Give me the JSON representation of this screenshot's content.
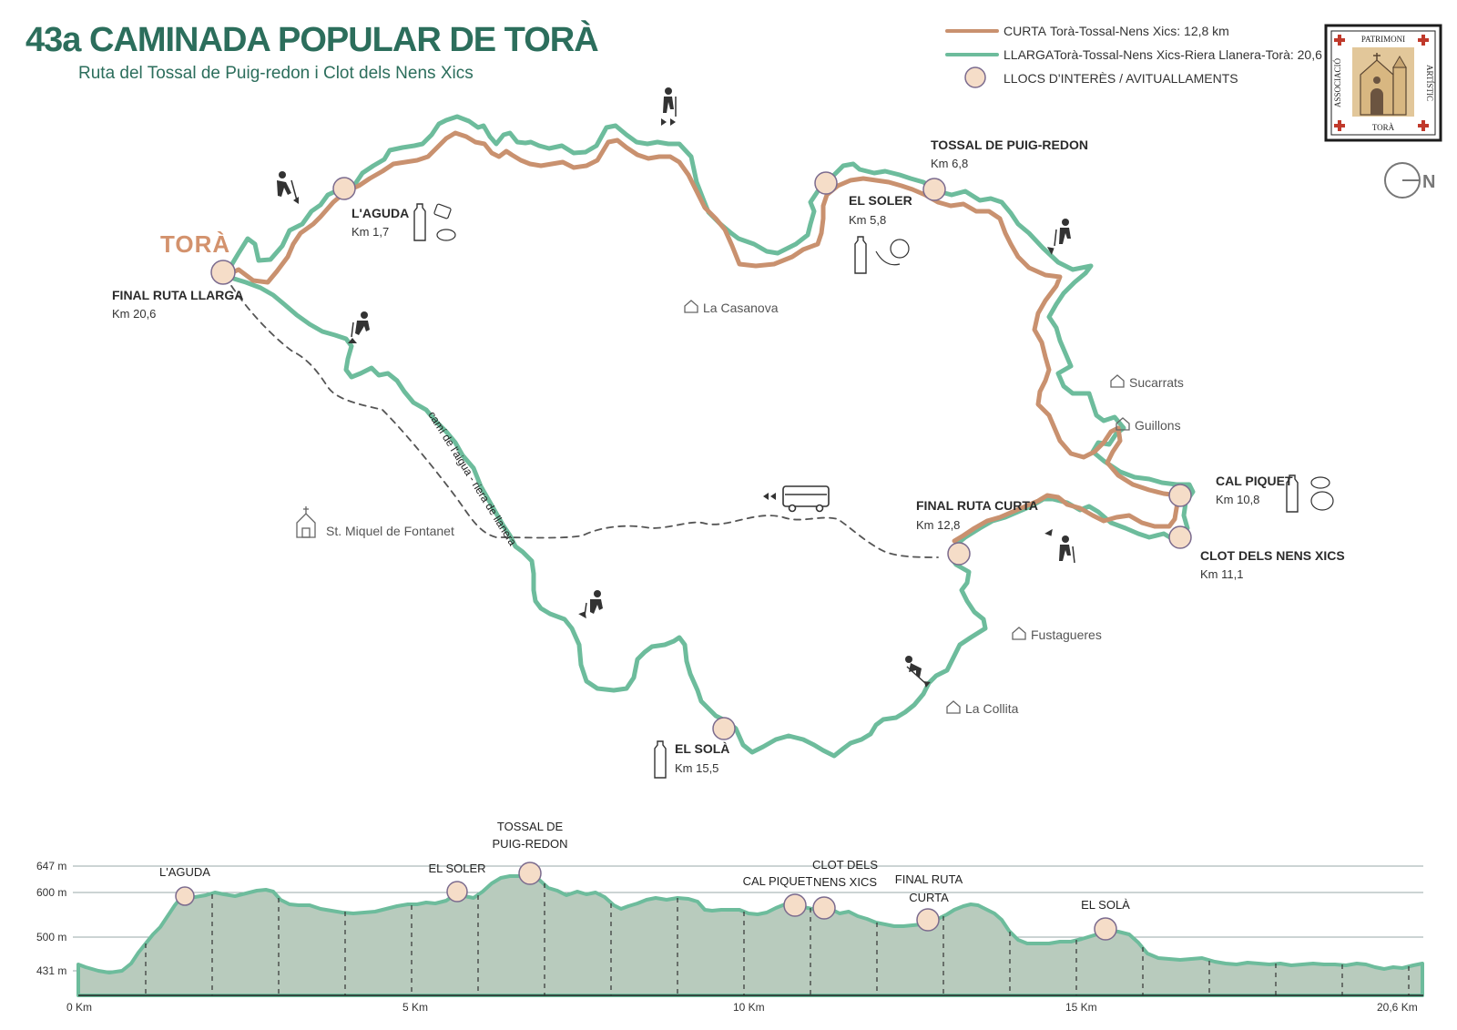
{
  "header": {
    "title": "43a CAMINADA POPULAR DE TORÀ",
    "subtitle": "Ruta del Tossal de Puig-redon i Clot dels Nens Xics"
  },
  "legend": {
    "curta_label": "CURTA",
    "curta_desc": "Torà-Tossal-Nens Xics: 12,8 km",
    "llarga_label": "LLARGA",
    "llarga_desc": "Torà-Tossal-Nens Xics-Riera Llanera-Torà: 20,6 km",
    "poi_desc": "LLOCS D'INTERÈS / AVITUALLAMENTS"
  },
  "logo": {
    "top": "PATRIMONI",
    "left": "ASSOCIACIÓ",
    "right": "ARTÍSTIC",
    "bottom": "TORÀ"
  },
  "north": "N",
  "map": {
    "town": "TORÀ",
    "pois": {
      "aguda": {
        "name": "L'AGUDA",
        "km": "Km 1,7"
      },
      "soler": {
        "name": "EL SOLER",
        "km": "Km 5,8"
      },
      "tossal": {
        "name": "TOSSAL DE PUIG-REDON",
        "km": "Km 6,8"
      },
      "calpiquet": {
        "name": "CAL PIQUET",
        "km": "Km 10,8"
      },
      "clot": {
        "name": "CLOT DELS NENS XICS",
        "km": "Km 11,1"
      },
      "finalcurta": {
        "name": "FINAL RUTA CURTA",
        "km": "Km 12,8"
      },
      "sola": {
        "name": "EL SOLÀ",
        "km": "Km 15,5"
      },
      "finalllarga": {
        "name": "FINAL RUTA LLARGA",
        "km": "Km 20,6"
      }
    },
    "places": {
      "casanova": "La Casanova",
      "sucarrats": "Sucarrats",
      "guillons": "Guillons",
      "fustagueres": "Fustagueres",
      "collita": "La Collita",
      "fontanet": "St. Miquel de Fontanet"
    },
    "path_label": "camí de l'aigua - riera de llanera"
  },
  "profile": {
    "y_ticks": [
      "647 m",
      "600 m",
      "500 m",
      "431 m"
    ],
    "x_ticks": [
      "0 Km",
      "5 Km",
      "10 Km",
      "15 Km",
      "20,6 Km"
    ],
    "labels": {
      "aguda": "L'AGUDA",
      "soler": "EL SOLER",
      "tossal_1": "TOSSAL DE",
      "tossal_2": "PUIG-REDON",
      "calpiquet": "CAL PIQUET",
      "clot_1": "CLOT DELS",
      "clot_2": "NENS XICS",
      "final_1": "FINAL RUTA",
      "final_2": "CURTA",
      "sola": "EL SOLÀ"
    }
  },
  "colors": {
    "curta": "#c9916f",
    "llarga": "#6dbc9c",
    "title": "#2c6e5c",
    "profile_fill": "#b8cbbd",
    "poi_fill": "#f5ddc8",
    "poi_stroke": "#7b6b8e"
  }
}
